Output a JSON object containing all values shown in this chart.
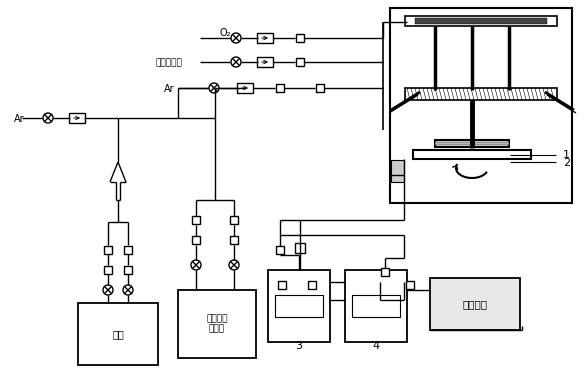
{
  "bg_color": "#ffffff",
  "lc": "#000000",
  "lw": 1.0,
  "labels": {
    "O2": "O₂",
    "gas_source": "气体据水源",
    "Ar_top": "Ar",
    "Ar_left": "Ar",
    "source": "钕源",
    "organic": "有机成液\n据水源",
    "exhaust": "尾气处理",
    "label1": "1",
    "label2": "2",
    "label3": "3",
    "label4": "4"
  }
}
